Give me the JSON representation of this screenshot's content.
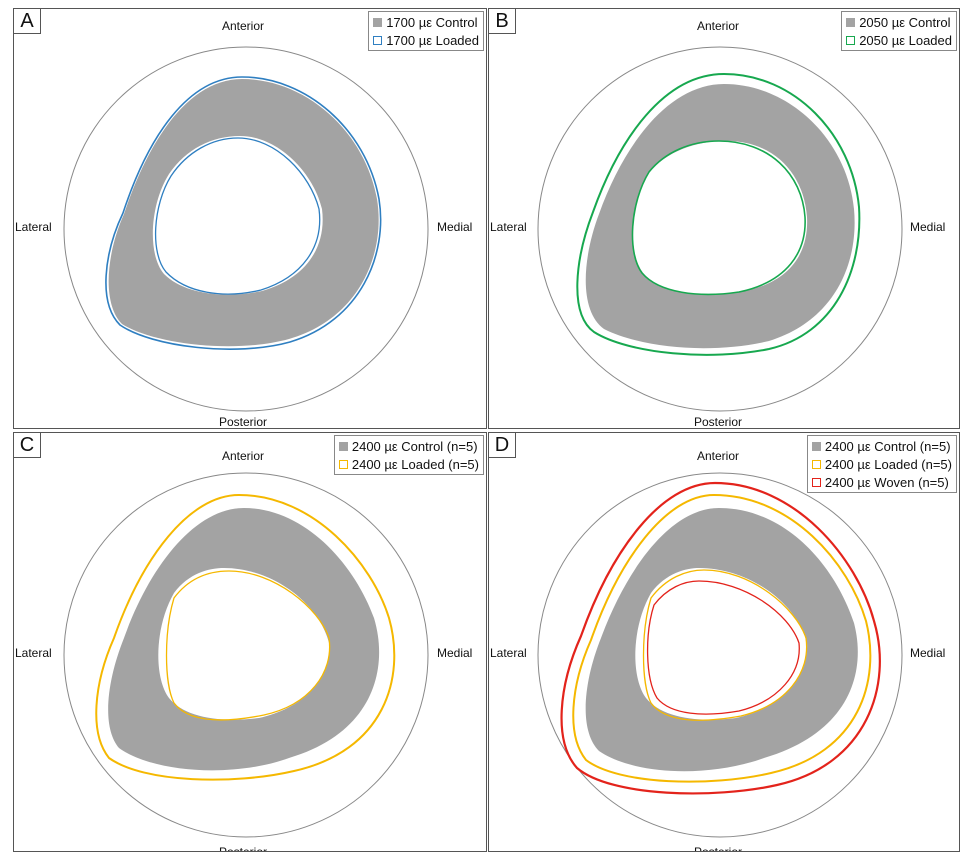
{
  "directions": {
    "anterior": "Anterior",
    "posterior": "Posterior",
    "lateral": "Lateral",
    "medial": "Medial"
  },
  "colors": {
    "control_fill": "#a3a3a3",
    "blue": "#2f7fc1",
    "green": "#17a84f",
    "orange": "#f5b800",
    "red": "#e3231b",
    "reference_circle": "#888888"
  },
  "panels": [
    {
      "label": "A",
      "legend": [
        {
          "text": "1700 µε Control",
          "style": "filled",
          "color": "#a3a3a3"
        },
        {
          "text": "1700 µε Loaded",
          "style": "outline",
          "color": "#2f7fc1"
        }
      ]
    },
    {
      "label": "B",
      "legend": [
        {
          "text": "2050 µε Control",
          "style": "filled",
          "color": "#a3a3a3"
        },
        {
          "text": "2050 µε Loaded",
          "style": "outline",
          "color": "#17a84f"
        }
      ]
    },
    {
      "label": "C",
      "legend": [
        {
          "text": "2400 µε Control (n=5)",
          "style": "filled",
          "color": "#a3a3a3"
        },
        {
          "text": "2400 µε Loaded (n=5)",
          "style": "outline",
          "color": "#f5b800"
        }
      ]
    },
    {
      "label": "D",
      "legend": [
        {
          "text": "2400 µε Control (n=5)",
          "style": "filled",
          "color": "#a3a3a3"
        },
        {
          "text": "2400 µε Loaded (n=5)",
          "style": "outline",
          "color": "#f5b800"
        },
        {
          "text": "2400 µε Woven (n=5)",
          "style": "outline",
          "color": "#e3231b"
        }
      ]
    }
  ]
}
